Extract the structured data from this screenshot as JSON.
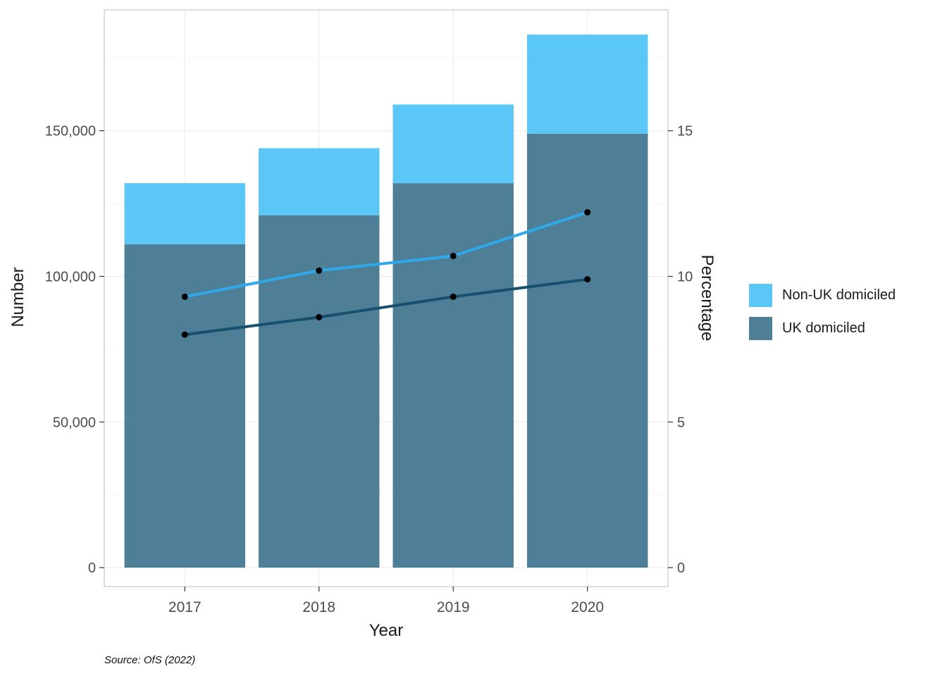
{
  "chart_data": {
    "type": "bar+line",
    "categories": [
      "2017",
      "2018",
      "2019",
      "2020"
    ],
    "bars": {
      "stacked": true,
      "value_axis": "left",
      "series": [
        {
          "name": "UK domiciled",
          "color": "#4E7F96",
          "values": [
            111000,
            121000,
            132000,
            149000
          ]
        },
        {
          "name": "Non-UK domiciled",
          "color": "#5BC7F7",
          "values": [
            21000,
            23000,
            27000,
            34000
          ]
        }
      ],
      "stack_totals": [
        132000,
        144000,
        159000,
        183000
      ]
    },
    "lines": {
      "value_axis": "right",
      "point_color": "#000000",
      "series": [
        {
          "name": "Non-UK domiciled",
          "color": "#2FA9E9",
          "values": [
            9.3,
            10.2,
            10.7,
            12.2
          ]
        },
        {
          "name": "UK domiciled",
          "color": "#17506E",
          "values": [
            8.0,
            8.6,
            9.3,
            9.9
          ]
        }
      ]
    },
    "axes": {
      "x": {
        "title": "Year",
        "tick_labels": [
          "2017",
          "2018",
          "2019",
          "2020"
        ]
      },
      "y_left": {
        "title": "Number",
        "tick_values": [
          0,
          50000,
          100000,
          150000
        ],
        "tick_labels": [
          "0",
          "50,000",
          "100,000",
          "150,000"
        ],
        "min": -6500,
        "max": 191500
      },
      "y_right": {
        "title": "Percentage",
        "tick_values": [
          0,
          5,
          10,
          15
        ],
        "tick_labels": [
          "0",
          "5",
          "10",
          "15"
        ],
        "number_per_percent": 10000
      }
    },
    "legend": {
      "position": "right",
      "entries": [
        "Non-UK domiciled",
        "UK domiciled"
      ]
    },
    "grid": true,
    "source": "Source: OfS (2022)"
  }
}
